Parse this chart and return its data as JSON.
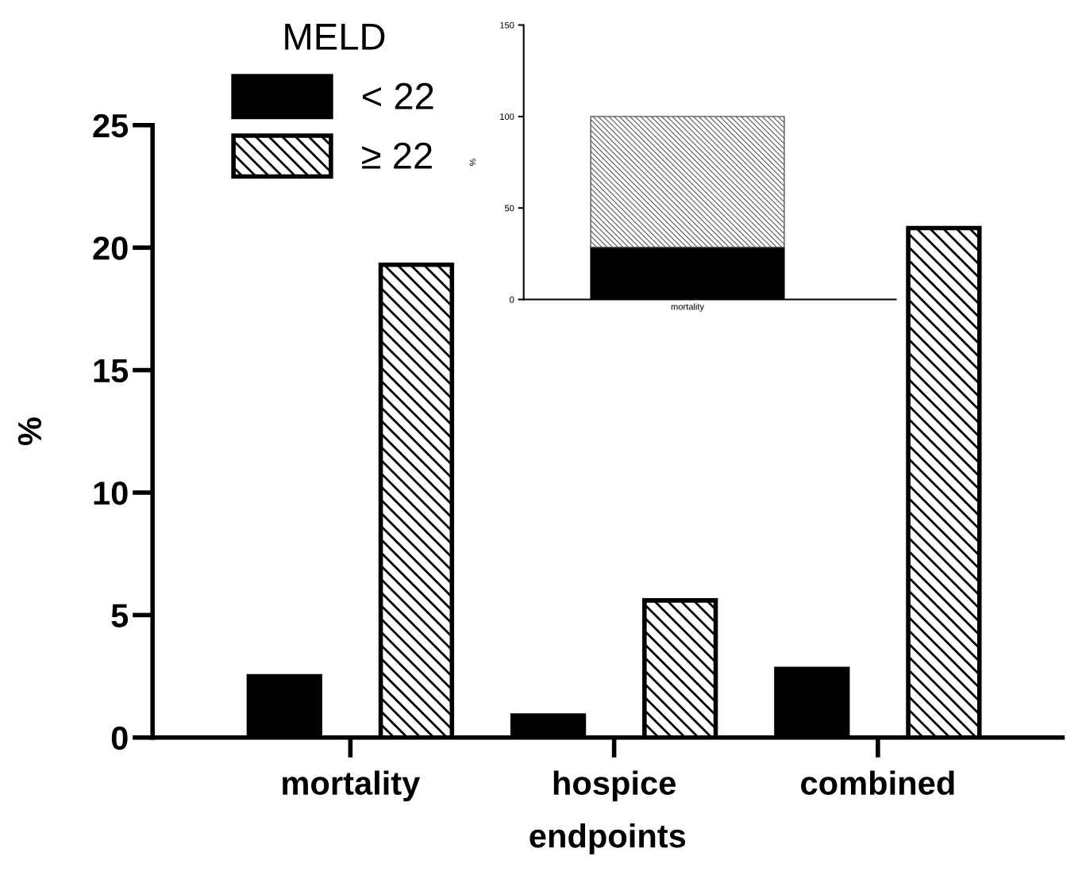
{
  "chart_data": [
    {
      "type": "bar",
      "legend_title": "MELD",
      "xlabel": "endpoints",
      "ylabel": "%",
      "categories": [
        "mortality",
        "hospice",
        "combined"
      ],
      "series": [
        {
          "name": "< 22",
          "color": "#000000",
          "values": [
            2.5,
            0.9,
            2.8
          ]
        },
        {
          "name": "≥ 22",
          "color": "#000000",
          "values": [
            19.3,
            5.6,
            20.8
          ]
        }
      ],
      "ylim": [
        0,
        25
      ],
      "yticks": [
        0,
        5,
        10,
        15,
        20,
        25
      ],
      "legend": "top left",
      "grid": false
    },
    {
      "type": "bar",
      "stacked": true,
      "ylabel": "%",
      "categories": [
        "mortality"
      ],
      "series": [
        {
          "color": "#000000",
          "values": [
            28.5
          ]
        },
        {
          "color": "#555555",
          "values": [
            71.5
          ]
        }
      ],
      "ylim": [
        0,
        150
      ],
      "yticks": [
        0,
        50,
        100,
        150
      ],
      "grid": false
    }
  ]
}
